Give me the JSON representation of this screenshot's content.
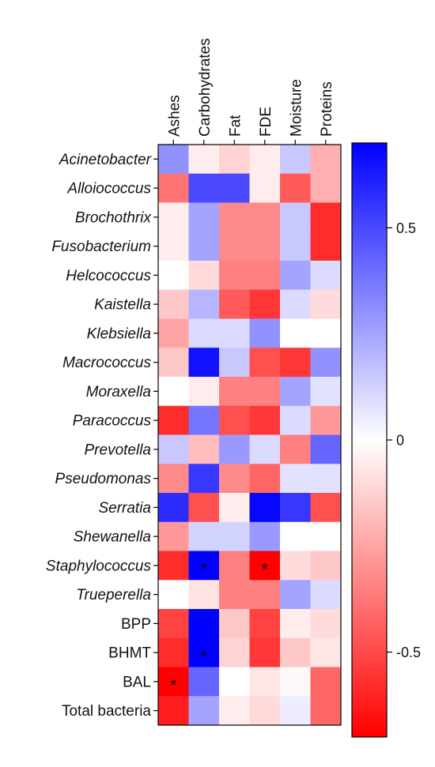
{
  "chart_data": {
    "type": "heatmap",
    "columns": [
      "Ashes",
      "Carbohydrates",
      "Fat",
      "FDE",
      "Moisture",
      "Proteins"
    ],
    "rows": [
      {
        "label": "Acinetobacter",
        "italic": true
      },
      {
        "label": "Alloiococcus",
        "italic": true
      },
      {
        "label": "Brochothrix",
        "italic": true
      },
      {
        "label": "Fusobacterium",
        "italic": true
      },
      {
        "label": "Helcococcus",
        "italic": true
      },
      {
        "label": "Kaistella",
        "italic": true
      },
      {
        "label": "Klebsiella",
        "italic": true
      },
      {
        "label": "Macrococcus",
        "italic": true
      },
      {
        "label": "Moraxella",
        "italic": true
      },
      {
        "label": "Paracoccus",
        "italic": true
      },
      {
        "label": "Prevotella",
        "italic": true
      },
      {
        "label": "Pseudomonas",
        "italic": true
      },
      {
        "label": "Serratia",
        "italic": true
      },
      {
        "label": "Shewanella",
        "italic": true
      },
      {
        "label": "Staphylococcus",
        "italic": true
      },
      {
        "label": "Trueperella",
        "italic": true
      },
      {
        "label": "BPP",
        "italic": false
      },
      {
        "label": "BHMT",
        "italic": false
      },
      {
        "label": "BAL",
        "italic": false
      },
      {
        "label": "Total bacteria",
        "italic": false
      }
    ],
    "values": [
      [
        0.3,
        -0.05,
        -0.12,
        -0.05,
        0.15,
        -0.22
      ],
      [
        -0.38,
        0.5,
        0.5,
        -0.05,
        -0.45,
        -0.22
      ],
      [
        -0.05,
        0.25,
        -0.32,
        -0.32,
        0.15,
        -0.58
      ],
      [
        -0.05,
        0.25,
        -0.32,
        -0.32,
        0.15,
        -0.58
      ],
      [
        0.0,
        -0.1,
        -0.35,
        -0.35,
        0.25,
        0.1
      ],
      [
        -0.15,
        0.2,
        -0.45,
        -0.55,
        0.1,
        -0.1
      ],
      [
        -0.25,
        0.1,
        0.1,
        0.3,
        0.0,
        0.0
      ],
      [
        -0.15,
        0.65,
        0.15,
        -0.48,
        -0.55,
        0.3
      ],
      [
        0.0,
        -0.05,
        -0.35,
        -0.35,
        0.25,
        0.08
      ],
      [
        -0.58,
        0.38,
        -0.48,
        -0.55,
        0.1,
        -0.28
      ],
      [
        0.15,
        -0.18,
        0.28,
        0.1,
        -0.35,
        0.42
      ],
      [
        -0.32,
        0.55,
        -0.32,
        -0.42,
        0.08,
        0.08
      ],
      [
        0.58,
        -0.48,
        -0.05,
        0.68,
        0.55,
        -0.48
      ],
      [
        -0.28,
        0.12,
        0.12,
        0.28,
        0.0,
        0.0
      ],
      [
        -0.58,
        0.88,
        -0.35,
        -0.9,
        -0.1,
        -0.15
      ],
      [
        0.0,
        -0.08,
        -0.35,
        -0.35,
        0.25,
        0.1
      ],
      [
        -0.52,
        0.72,
        -0.15,
        -0.52,
        -0.05,
        -0.1
      ],
      [
        -0.58,
        0.72,
        -0.12,
        -0.55,
        -0.15,
        -0.07
      ],
      [
        -0.7,
        0.42,
        0.0,
        -0.07,
        -0.02,
        -0.42
      ],
      [
        -0.62,
        0.25,
        -0.05,
        -0.1,
        0.05,
        -0.42
      ]
    ],
    "significant": [
      [
        14,
        1
      ],
      [
        14,
        3
      ],
      [
        17,
        1
      ],
      [
        18,
        0
      ]
    ],
    "significance_marker": "*",
    "colorscale": {
      "low_color": "#ff0000",
      "mid_color": "#ffffff",
      "high_color": "#0000ff",
      "ticks": [
        0.5,
        0,
        -0.5
      ],
      "tick_labels": [
        "0.5",
        "0",
        "-0.5"
      ],
      "range": [
        -0.7,
        0.7
      ]
    },
    "title": "",
    "xlabel": "",
    "ylabel": ""
  }
}
